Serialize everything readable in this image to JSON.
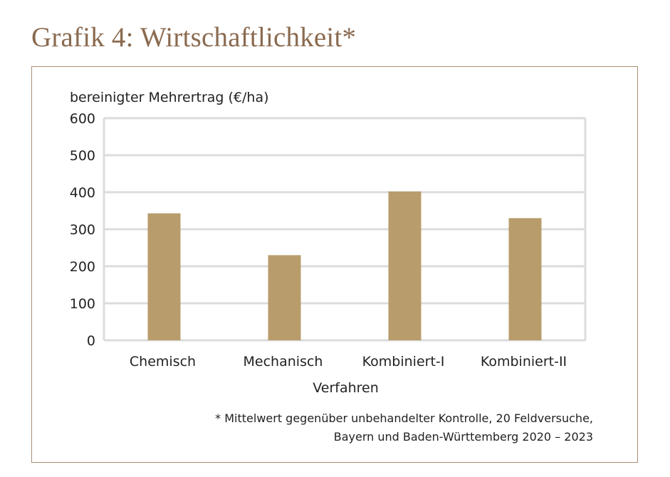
{
  "header": {
    "title": "Grafik 4: Wirtschaftlichkeit*"
  },
  "chart_data": {
    "type": "bar",
    "ylabel": "bereinigter Mehrertrag (€/ha)",
    "xlabel": "Verfahren",
    "categories": [
      "Chemisch",
      "Mechanisch",
      "Kombiniert-I",
      "Kombiniert-II"
    ],
    "values": [
      343,
      230,
      402,
      330
    ],
    "ylim": [
      0,
      600
    ],
    "yticks": [
      0,
      100,
      200,
      300,
      400,
      500,
      600
    ],
    "grid": true,
    "bar_color": "#b89c6c",
    "grid_color": "#dcdcdc"
  },
  "footnote": {
    "line1": "* Mittelwert gegenüber unbehandelter Kontrolle, 20 Feldversuche,",
    "line2": "Bayern und Baden-Württemberg 2020 – 2023"
  },
  "colors": {
    "title": "#8a6a4f",
    "frame": "#a98d75"
  }
}
